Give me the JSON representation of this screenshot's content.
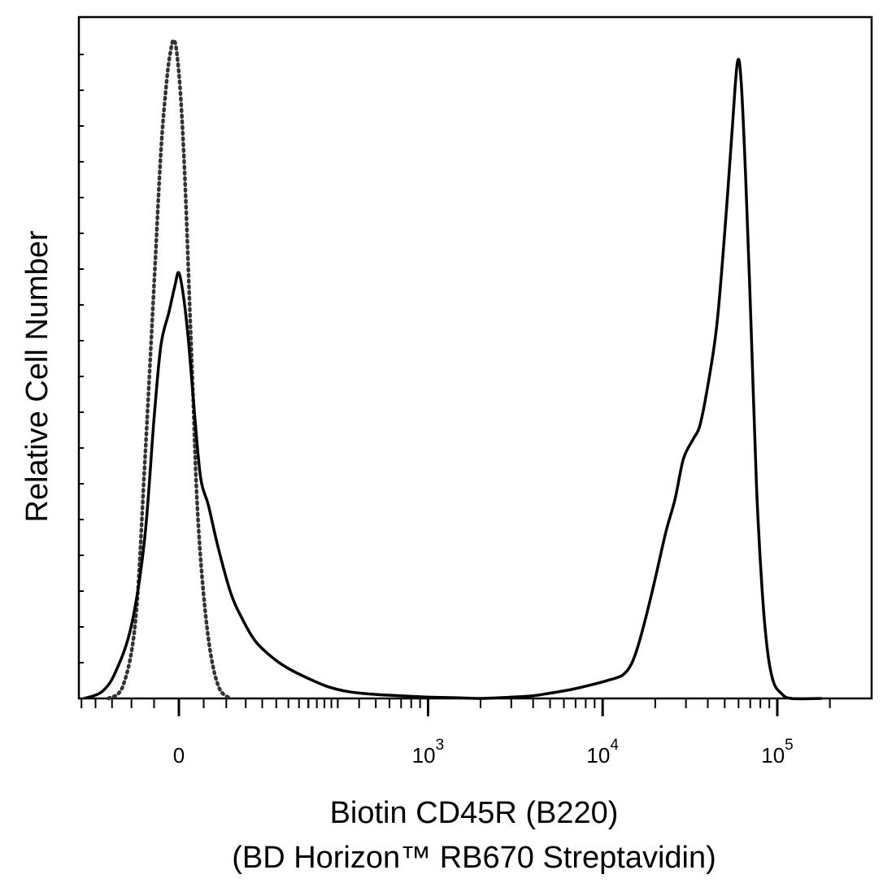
{
  "chart_data": {
    "type": "line",
    "title": "",
    "xlabel": "Biotin CD45R (B220)",
    "xlabel_line2": "(BD Horizon™ RB670  Streptavidin)",
    "ylabel": "Relative Cell Number",
    "x_scale": "biexponential",
    "y_ticks_labeled": false,
    "grid": false,
    "legend": "none",
    "x_tick_labels": [
      {
        "value": 0,
        "base": "0",
        "exp": ""
      },
      {
        "value": 1000,
        "base": "10",
        "exp": "3"
      },
      {
        "value": 10000,
        "base": "10",
        "exp": "4"
      },
      {
        "value": 100000,
        "base": "10",
        "exp": "5"
      }
    ],
    "series": [
      {
        "style": "dotted",
        "color": "#333333",
        "points": [
          [
            -80,
            0.0
          ],
          [
            -60,
            0.02
          ],
          [
            -45,
            0.12
          ],
          [
            -35,
            0.35
          ],
          [
            -25,
            0.62
          ],
          [
            -18,
            0.82
          ],
          [
            -12,
            0.93
          ],
          [
            -8,
            0.975
          ],
          [
            -5,
            0.99
          ],
          [
            -2,
            0.97
          ],
          [
            2,
            0.9
          ],
          [
            6,
            0.78
          ],
          [
            10,
            0.62
          ],
          [
            14,
            0.46
          ],
          [
            18,
            0.3
          ],
          [
            24,
            0.17
          ],
          [
            32,
            0.07
          ],
          [
            42,
            0.015
          ],
          [
            55,
            0.0
          ]
        ]
      },
      {
        "style": "solid",
        "color": "#000000",
        "points": [
          [
            -120,
            0.0
          ],
          [
            -90,
            0.01
          ],
          [
            -70,
            0.04
          ],
          [
            -50,
            0.11
          ],
          [
            -35,
            0.24
          ],
          [
            -25,
            0.42
          ],
          [
            -18,
            0.53
          ],
          [
            -10,
            0.58
          ],
          [
            -4,
            0.62
          ],
          [
            0,
            0.64
          ],
          [
            5,
            0.6
          ],
          [
            10,
            0.53
          ],
          [
            16,
            0.42
          ],
          [
            22,
            0.33
          ],
          [
            30,
            0.29
          ],
          [
            40,
            0.23
          ],
          [
            55,
            0.16
          ],
          [
            70,
            0.12
          ],
          [
            90,
            0.085
          ],
          [
            120,
            0.06
          ],
          [
            150,
            0.045
          ],
          [
            200,
            0.03
          ],
          [
            260,
            0.018
          ],
          [
            350,
            0.01
          ],
          [
            500,
            0.006
          ],
          [
            700,
            0.004
          ],
          [
            1000,
            0.002
          ],
          [
            1500,
            0.001
          ],
          [
            2000,
            0.0
          ],
          [
            3000,
            0.002
          ],
          [
            4000,
            0.004
          ],
          [
            5000,
            0.008
          ],
          [
            6500,
            0.013
          ],
          [
            8500,
            0.02
          ],
          [
            11000,
            0.028
          ],
          [
            13000,
            0.035
          ],
          [
            14500,
            0.05
          ],
          [
            16000,
            0.08
          ],
          [
            18000,
            0.13
          ],
          [
            20000,
            0.18
          ],
          [
            23000,
            0.25
          ],
          [
            26000,
            0.3
          ],
          [
            29000,
            0.36
          ],
          [
            33000,
            0.39
          ],
          [
            36000,
            0.41
          ],
          [
            40000,
            0.47
          ],
          [
            45000,
            0.56
          ],
          [
            50000,
            0.7
          ],
          [
            55000,
            0.85
          ],
          [
            59000,
            0.955
          ],
          [
            62000,
            0.93
          ],
          [
            66000,
            0.78
          ],
          [
            71000,
            0.55
          ],
          [
            76000,
            0.32
          ],
          [
            82000,
            0.16
          ],
          [
            88000,
            0.07
          ],
          [
            95000,
            0.025
          ],
          [
            105000,
            0.008
          ],
          [
            120000,
            0.0
          ],
          [
            180000,
            0.0
          ]
        ]
      }
    ]
  }
}
